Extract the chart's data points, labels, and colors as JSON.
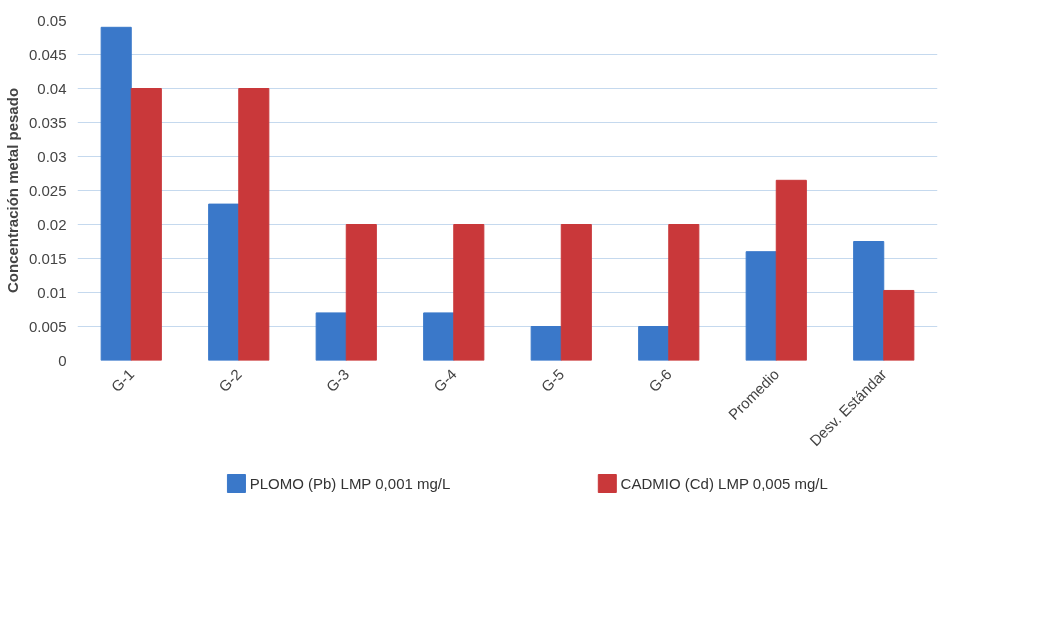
{
  "chart_data": {
    "type": "bar",
    "ylabel": "Concentración metal pesado",
    "categories": [
      "G-1",
      "G-2",
      "G-3",
      "G-4",
      "G-5",
      "G-6",
      "Promedio",
      "Desv. Estándar"
    ],
    "series": [
      {
        "name": "PLOMO (Pb)   LMP 0,001 mg/L",
        "color": "#3a78c9",
        "values": [
          0.049,
          0.023,
          0.007,
          0.007,
          0.005,
          0.005,
          0.016,
          0.0175
        ]
      },
      {
        "name": "CADMIO (Cd)    LMP 0,005 mg/L",
        "color": "#c9383a",
        "values": [
          0.04,
          0.04,
          0.02,
          0.02,
          0.02,
          0.02,
          0.0265,
          0.0103
        ]
      }
    ],
    "ylim": [
      0,
      0.05
    ],
    "yticks": [
      0,
      {
        "value": 0.005,
        "label": "0.005"
      },
      0.01,
      0.015,
      0.02,
      0.025,
      0.03,
      0.035,
      0.04,
      0.045,
      0.05
    ],
    "grid": "y",
    "legend": "bottom"
  }
}
